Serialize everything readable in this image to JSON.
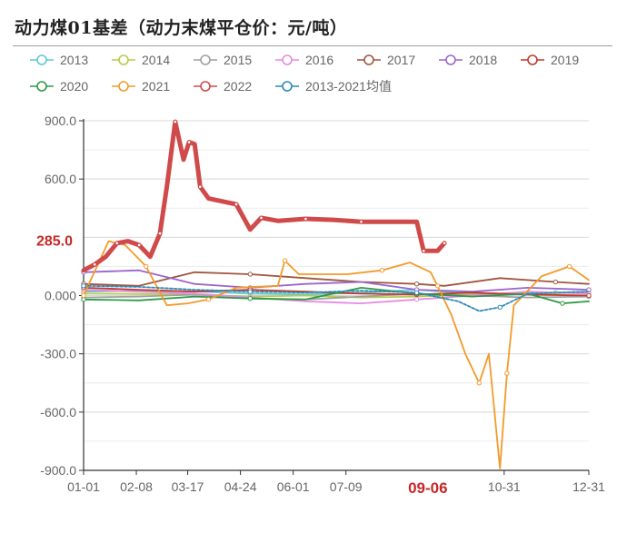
{
  "title": "动力煤01基差（动力末煤平仓价：元/吨）",
  "chart_data": {
    "type": "line",
    "title": "动力煤01基差（动力末煤平仓价：元/吨）",
    "xlabel": "",
    "ylabel": "",
    "ylim": [
      -900,
      900
    ],
    "y_ticks": [
      "900.0",
      "600.0",
      "0.000",
      "-300.0",
      "-600.0",
      "-900.0"
    ],
    "y_tick_values": [
      900,
      600,
      0,
      -300,
      -600,
      -900
    ],
    "x_ticks": [
      "01-01",
      "02-08",
      "03-17",
      "04-24",
      "06-01",
      "07-09",
      "10-31",
      "12-31"
    ],
    "x_tick_days": [
      0,
      38,
      75,
      113,
      151,
      189,
      303,
      364
    ],
    "highlight": {
      "y_label": "285.0",
      "y_value": 285,
      "x_label": "09-06",
      "x_day": 248
    },
    "grid": true,
    "legend_position": "top",
    "series": [
      {
        "name": "2013",
        "color": "#5ec8d5",
        "points": [
          [
            0,
            20
          ],
          [
            40,
            25
          ],
          [
            80,
            22
          ],
          [
            120,
            10
          ],
          [
            160,
            5
          ],
          [
            200,
            15
          ],
          [
            240,
            30
          ],
          [
            260,
            20
          ],
          [
            300,
            10
          ],
          [
            340,
            15
          ],
          [
            364,
            20
          ]
        ]
      },
      {
        "name": "2014",
        "color": "#b5cc4a",
        "points": [
          [
            0,
            10
          ],
          [
            40,
            8
          ],
          [
            80,
            5
          ],
          [
            120,
            -5
          ],
          [
            160,
            0
          ],
          [
            200,
            -10
          ],
          [
            240,
            -5
          ],
          [
            280,
            5
          ],
          [
            320,
            10
          ],
          [
            364,
            15
          ]
        ]
      },
      {
        "name": "2015",
        "color": "#a0a0a0",
        "points": [
          [
            0,
            -10
          ],
          [
            40,
            -5
          ],
          [
            80,
            5
          ],
          [
            120,
            -15
          ],
          [
            160,
            -20
          ],
          [
            200,
            -5
          ],
          [
            240,
            10
          ],
          [
            280,
            0
          ],
          [
            320,
            -10
          ],
          [
            364,
            -5
          ]
        ]
      },
      {
        "name": "2016",
        "color": "#e48be0",
        "points": [
          [
            0,
            30
          ],
          [
            40,
            20
          ],
          [
            80,
            10
          ],
          [
            120,
            -10
          ],
          [
            160,
            -30
          ],
          [
            200,
            -40
          ],
          [
            240,
            -20
          ],
          [
            280,
            0
          ],
          [
            320,
            20
          ],
          [
            364,
            10
          ]
        ]
      },
      {
        "name": "2017",
        "color": "#a0563e",
        "points": [
          [
            0,
            60
          ],
          [
            40,
            50
          ],
          [
            80,
            120
          ],
          [
            120,
            110
          ],
          [
            160,
            90
          ],
          [
            200,
            70
          ],
          [
            240,
            60
          ],
          [
            260,
            50
          ],
          [
            300,
            90
          ],
          [
            340,
            70
          ],
          [
            364,
            60
          ]
        ]
      },
      {
        "name": "2018",
        "color": "#9966cc",
        "points": [
          [
            0,
            120
          ],
          [
            40,
            130
          ],
          [
            80,
            60
          ],
          [
            120,
            40
          ],
          [
            160,
            60
          ],
          [
            200,
            70
          ],
          [
            240,
            30
          ],
          [
            280,
            20
          ],
          [
            320,
            40
          ],
          [
            364,
            30
          ]
        ]
      },
      {
        "name": "2019",
        "color": "#c0392b",
        "points": [
          [
            0,
            40
          ],
          [
            40,
            30
          ],
          [
            80,
            20
          ],
          [
            120,
            30
          ],
          [
            160,
            20
          ],
          [
            200,
            10
          ],
          [
            240,
            5
          ],
          [
            280,
            15
          ],
          [
            320,
            5
          ],
          [
            364,
            0
          ]
        ]
      },
      {
        "name": "2020",
        "color": "#2e9a46",
        "points": [
          [
            0,
            -20
          ],
          [
            40,
            -25
          ],
          [
            80,
            -5
          ],
          [
            120,
            -15
          ],
          [
            160,
            -20
          ],
          [
            200,
            40
          ],
          [
            240,
            10
          ],
          [
            280,
            -5
          ],
          [
            320,
            10
          ],
          [
            345,
            -40
          ],
          [
            364,
            -30
          ]
        ]
      },
      {
        "name": "2021",
        "color": "#f39a2a",
        "points": [
          [
            0,
            0
          ],
          [
            18,
            280
          ],
          [
            30,
            260
          ],
          [
            45,
            150
          ],
          [
            60,
            -50
          ],
          [
            75,
            -40
          ],
          [
            90,
            -20
          ],
          [
            110,
            40
          ],
          [
            140,
            50
          ],
          [
            145,
            180
          ],
          [
            155,
            110
          ],
          [
            190,
            110
          ],
          [
            215,
            130
          ],
          [
            235,
            170
          ],
          [
            250,
            120
          ],
          [
            255,
            50
          ],
          [
            265,
            -100
          ],
          [
            275,
            -300
          ],
          [
            285,
            -450
          ],
          [
            292,
            -300
          ],
          [
            300,
            -890
          ],
          [
            305,
            -400
          ],
          [
            310,
            -50
          ],
          [
            330,
            100
          ],
          [
            350,
            150
          ],
          [
            364,
            80
          ]
        ]
      },
      {
        "name": "2022",
        "color": "#d04a4a",
        "points": [
          [
            0,
            130
          ],
          [
            8,
            160
          ],
          [
            16,
            200
          ],
          [
            24,
            270
          ],
          [
            32,
            280
          ],
          [
            40,
            260
          ],
          [
            48,
            200
          ],
          [
            55,
            320
          ],
          [
            60,
            560
          ],
          [
            66,
            895
          ],
          [
            72,
            700
          ],
          [
            76,
            790
          ],
          [
            80,
            780
          ],
          [
            84,
            560
          ],
          [
            90,
            500
          ],
          [
            110,
            470
          ],
          [
            120,
            340
          ],
          [
            128,
            400
          ],
          [
            140,
            385
          ],
          [
            160,
            395
          ],
          [
            180,
            390
          ],
          [
            200,
            380
          ],
          [
            240,
            380
          ],
          [
            245,
            230
          ],
          [
            255,
            230
          ],
          [
            260,
            270
          ]
        ]
      },
      {
        "name": "2013-2021均值",
        "color": "#2f89b8",
        "points": [
          [
            0,
            50
          ],
          [
            40,
            45
          ],
          [
            80,
            30
          ],
          [
            120,
            20
          ],
          [
            160,
            15
          ],
          [
            200,
            25
          ],
          [
            240,
            15
          ],
          [
            270,
            -30
          ],
          [
            285,
            -80
          ],
          [
            300,
            -60
          ],
          [
            320,
            10
          ],
          [
            364,
            20
          ]
        ]
      }
    ]
  }
}
